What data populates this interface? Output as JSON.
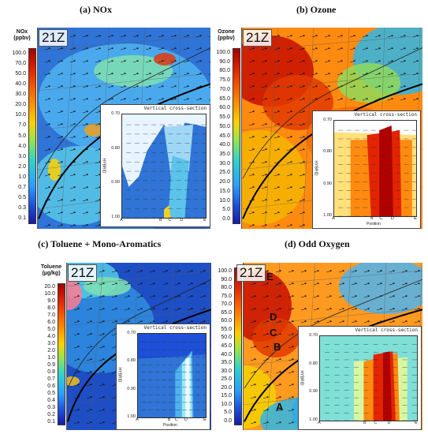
{
  "panels": {
    "a": {
      "title": "(a) NOx",
      "legend_title": "NOx\n(ppbv)",
      "ticks": [
        "100.0",
        "70.0",
        "50.0",
        "40.0",
        "30.0",
        "20.0",
        "10.0",
        "7.0",
        "5.0",
        "4.0",
        "3.0",
        "2.0",
        "1.0",
        "0.7",
        "0.5",
        "0.3",
        "0.1"
      ],
      "time": "21Z",
      "inset": {
        "title": "Vertical cross-section",
        "y_label": "HYBRID",
        "y_ticks": [
          "0.70",
          "0.80",
          "0.90",
          "1.00"
        ],
        "x_ticks": [
          "A",
          "B",
          "C",
          "D",
          "E"
        ],
        "x_label": ""
      }
    },
    "b": {
      "title": "(b) Ozone",
      "legend_title": "Ozone\n(ppbv)",
      "ticks": [
        "100.0",
        "90.0",
        "80.0",
        "75.0",
        "70.0",
        "65.0",
        "60.0",
        "55.0",
        "50.0",
        "45.0",
        "40.0",
        "35.0",
        "30.0",
        "25.0",
        "20.0",
        "15.0",
        "10.0",
        "5.0",
        "0.0"
      ],
      "time": "21Z",
      "inset": {
        "title": "Vertical cross-section",
        "y_label": "HYBRID",
        "y_ticks": [
          "0.70",
          "0.80",
          "0.90",
          "1.00"
        ],
        "x_ticks": [
          "A",
          "B",
          "C",
          "D",
          "E"
        ],
        "x_label": "Position"
      }
    },
    "c": {
      "title": "(c) Toluene + Mono-Aromatics",
      "legend_title": "Toluene\n(µg/kg)",
      "ticks": [
        "20.0",
        "10.0",
        "9.0",
        "8.0",
        "7.0",
        "6.0",
        "5.0",
        "4.0",
        "3.0",
        "2.0",
        "1.0",
        "0.9",
        "0.8",
        "0.7",
        "0.6",
        "0.5",
        "0.4",
        "0.3",
        "0.2",
        "0.1"
      ],
      "time": "21Z",
      "inset": {
        "title": "Vertical cross-section",
        "y_label": "HYBRID",
        "y_ticks": [
          "0.70",
          "0.80",
          "0.90",
          "1.00"
        ],
        "x_ticks": [
          "A",
          "B",
          "C",
          "D",
          "E"
        ],
        "x_label": "Position"
      }
    },
    "d": {
      "title": "(d) Odd Oxygen",
      "ticks": [
        "100.0",
        "90.0",
        "80.0",
        "75.0",
        "70.0",
        "65.0",
        "60.0",
        "55.0",
        "50.0",
        "45.0",
        "40.0",
        "35.0",
        "30.0",
        "25.0",
        "20.0",
        "15.0",
        "10.0",
        "5.0",
        "0.0"
      ],
      "time": "21Z",
      "map_letters": [
        "E",
        "D",
        "C",
        "B",
        "A"
      ],
      "inset": {
        "title": "Vertical cross-section",
        "y_label": "HYBRID",
        "y_ticks": [
          "0.70",
          "0.80",
          "0.90",
          "1.00"
        ],
        "x_ticks": [
          "A",
          "B",
          "C",
          "D",
          "E"
        ],
        "x_label": ""
      }
    }
  },
  "colors": {
    "low_blue": "#1d4fd8",
    "mid_cyan": "#2fd3c8",
    "mid_yellow": "#ffd000",
    "high_orange": "#ff7a00",
    "high_red": "#c00000",
    "coastline": "#000000"
  }
}
